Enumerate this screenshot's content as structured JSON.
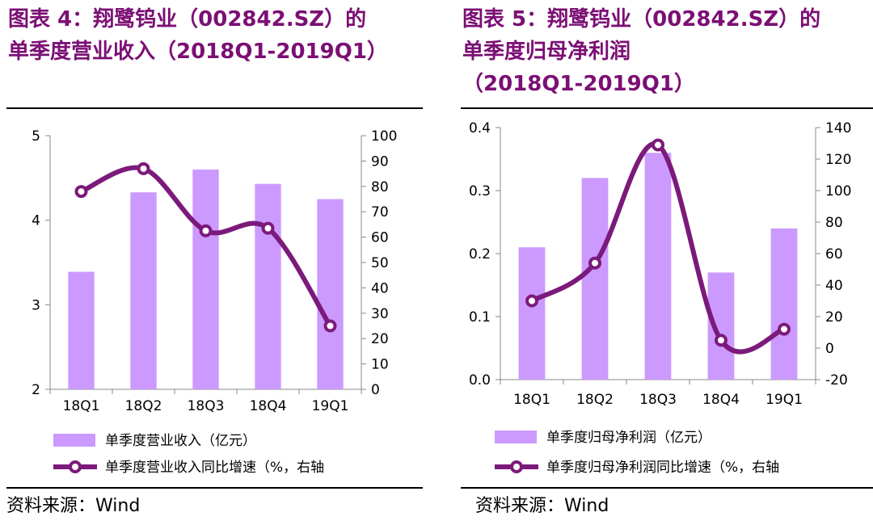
{
  "charts": [
    {
      "title_lines": [
        "图表 4：翔鹭钨业（002842.SZ）的",
        "单季度营业收入（2018Q1-2019Q1）"
      ],
      "source": "资料来源：Wind",
      "colors": {
        "bar": "#cc99ff",
        "line": "#7b1a7b",
        "title": "#7b0f74"
      },
      "chart_data": {
        "type": "bar+line",
        "categories": [
          "18Q1",
          "18Q2",
          "18Q3",
          "18Q4",
          "19Q1"
        ],
        "series": [
          {
            "name": "单季度营业收入（亿元）",
            "kind": "bar",
            "axis": "left",
            "values": [
              3.39,
              4.33,
              4.6,
              4.43,
              4.25
            ]
          },
          {
            "name": "单季度营业收入同比增速（%，右轴",
            "kind": "line",
            "axis": "right",
            "values": [
              78,
              87,
              62.5,
              63.5,
              25
            ]
          }
        ],
        "left_axis": {
          "ylim": [
            2,
            5
          ],
          "ticks": [
            2,
            3,
            4,
            5
          ],
          "tick_labels": [
            "2",
            "3",
            "4",
            "5"
          ]
        },
        "right_axis": {
          "ylim": [
            0,
            100
          ],
          "ticks": [
            0,
            10,
            20,
            30,
            40,
            50,
            60,
            70,
            80,
            90,
            100
          ],
          "tick_labels": [
            "0",
            "10",
            "20",
            "30",
            "40",
            "50",
            "60",
            "70",
            "80",
            "90",
            "100"
          ]
        },
        "grid": false,
        "legend_position": "bottom"
      }
    },
    {
      "title_lines": [
        "图表 5：翔鹭钨业（002842.SZ）的",
        "单季度归母净利润",
        "（2018Q1-2019Q1）"
      ],
      "source": "资料来源：Wind",
      "colors": {
        "bar": "#cc99ff",
        "line": "#7b1a7b",
        "title": "#7b0f74"
      },
      "chart_data": {
        "type": "bar+line",
        "categories": [
          "18Q1",
          "18Q2",
          "18Q3",
          "18Q4",
          "19Q1"
        ],
        "series": [
          {
            "name": "单季度归母净利润（亿元）",
            "kind": "bar",
            "axis": "left",
            "values": [
              0.21,
              0.32,
              0.36,
              0.17,
              0.24
            ]
          },
          {
            "name": "单季度归母净利润同比增速（%，右轴",
            "kind": "line",
            "axis": "right",
            "values": [
              30,
              54,
              129,
              5,
              12
            ]
          }
        ],
        "left_axis": {
          "ylim": [
            0,
            0.4
          ],
          "ticks": [
            0,
            0.1,
            0.2,
            0.3,
            0.4
          ],
          "tick_labels": [
            "0.0",
            "0.1",
            "0.2",
            "0.3",
            "0.4"
          ]
        },
        "right_axis": {
          "ylim": [
            -20,
            140
          ],
          "ticks": [
            -20,
            0,
            20,
            40,
            60,
            80,
            100,
            120,
            140
          ],
          "tick_labels": [
            "-20",
            "0",
            "20",
            "40",
            "60",
            "80",
            "100",
            "120",
            "140"
          ]
        },
        "grid": false,
        "legend_position": "bottom"
      }
    }
  ]
}
